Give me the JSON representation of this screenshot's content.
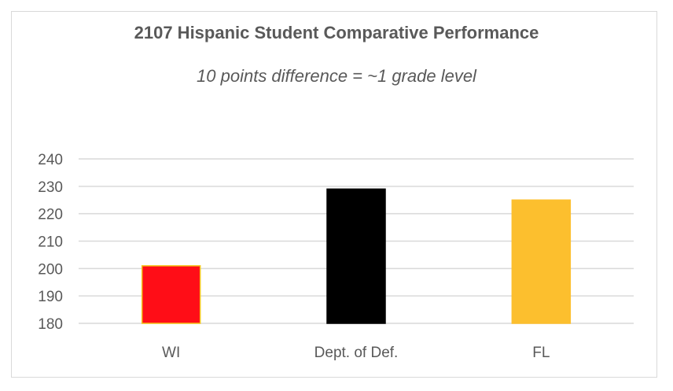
{
  "chart_data": {
    "type": "bar",
    "title": "2107 Hispanic Student Comparative Performance",
    "subtitle": "10 points difference = ~1 grade level",
    "categories": [
      "WI",
      "Dept. of Def.",
      "FL"
    ],
    "values": [
      201,
      229,
      225
    ],
    "bar_colors": [
      "#ff0d17",
      "#000000",
      "#fcbf2e"
    ],
    "bar_border_colors": [
      "#f5c518",
      "#000000",
      "#fcbf2e"
    ],
    "ylim": [
      180,
      240
    ],
    "yticks": [
      "180",
      "190",
      "200",
      "210",
      "220",
      "230",
      "240"
    ],
    "grid": true,
    "legend": "none"
  }
}
